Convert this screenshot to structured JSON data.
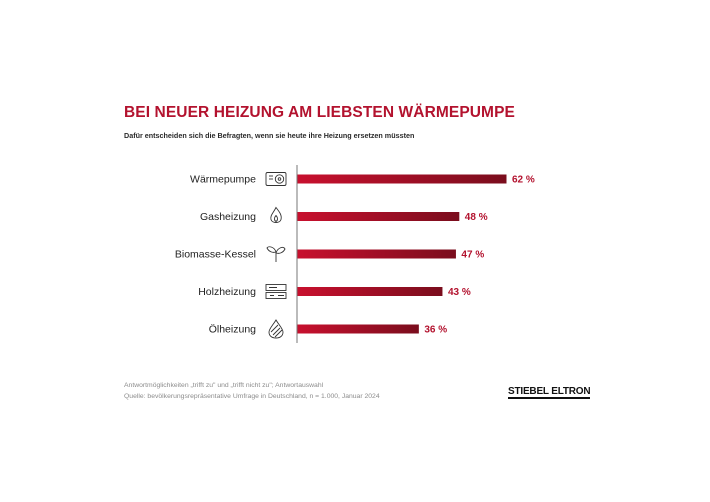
{
  "title": "BEI NEUER HEIZUNG AM LIEBSTEN WÄRMEPUMPE",
  "subtitle": "Dafür entscheiden sich die Befragten, wenn sie heute ihre Heizung ersetzen müssten",
  "footnote_1": "Antwortmöglichkeiten „trifft zu\" und „trifft nicht zu\"; Antwortauswahl",
  "footnote_2": "Quelle: bevölkerungsrepräsentative Umfrage in Deutschland, n = 1.000, Januar 2024",
  "brand": "STIEBEL ELTRON",
  "colors": {
    "title": "#b3122e",
    "bar_dark": "#7a0d1d",
    "bar_light": "#c8102e",
    "value_label": "#b3122e"
  },
  "chart_data": {
    "type": "bar",
    "orientation": "horizontal",
    "categories": [
      "Wärmepumpe",
      "Gasheizung",
      "Biomasse-Kessel",
      "Holzheizung",
      "Ölheizung"
    ],
    "icons": [
      "heat-pump-icon",
      "gas-flame-icon",
      "plant-sprout-icon",
      "wood-logs-icon",
      "oil-drop-icon"
    ],
    "values": [
      62,
      48,
      47,
      43,
      36
    ],
    "value_labels": [
      "62 %",
      "48 %",
      "47 %",
      "43 %",
      "36 %"
    ],
    "unit": "%",
    "xlim": [
      0,
      62
    ],
    "grid": false,
    "legend": "none"
  }
}
